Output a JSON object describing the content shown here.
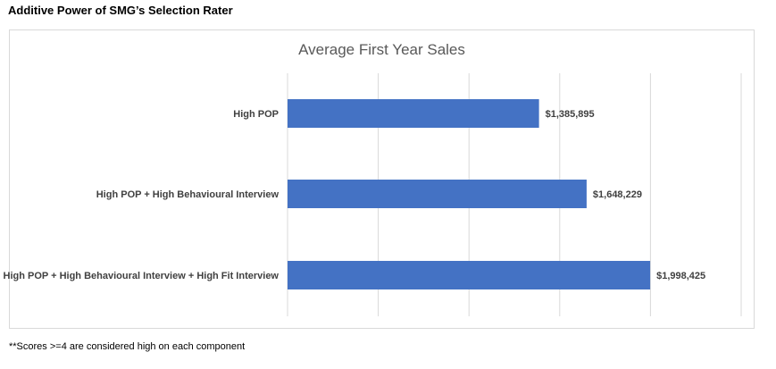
{
  "page": {
    "title": "Additive Power of SMG’s Selection Rater",
    "footnote": "**Scores >=4 are considered high on each component"
  },
  "chart_data": {
    "type": "bar",
    "orientation": "horizontal",
    "title": "Average First Year Sales",
    "categories": [
      "High POP",
      "High POP + High Behavioural Interview",
      "High POP + High Behavioural Interview + High Fit Interview"
    ],
    "values": [
      1385895,
      1648229,
      1998425
    ],
    "data_labels": [
      "$1,385,895",
      "$1,648,229",
      "$1,998,425"
    ],
    "xlim": [
      0,
      2500000
    ],
    "grid": true,
    "legend": "none",
    "bar_color": "#4472C4"
  }
}
